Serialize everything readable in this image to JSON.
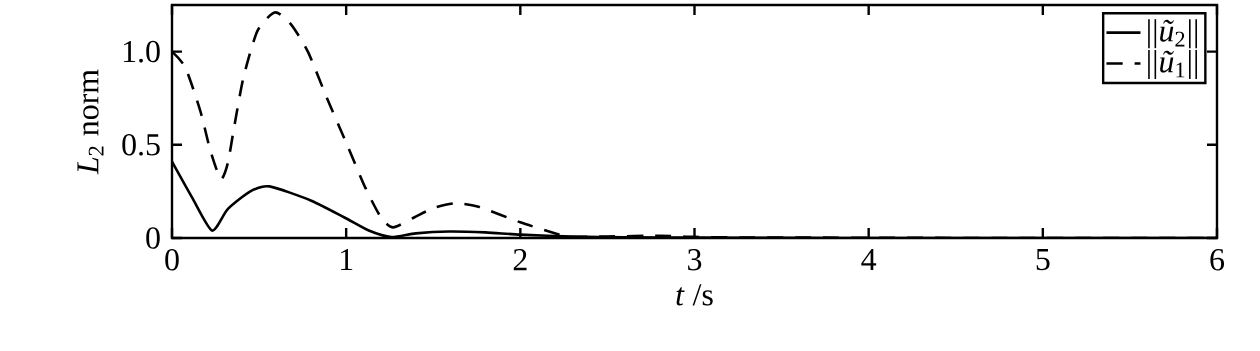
{
  "chart_data": {
    "type": "line",
    "xlabel": "*t* /s",
    "ylabel": "*L*$_{2}$ norm",
    "xlim": [
      0,
      6
    ],
    "ylim": [
      0,
      1.25
    ],
    "xticks": [
      0,
      1,
      2,
      3,
      4,
      5,
      6
    ],
    "yticks": [
      0,
      0.5,
      {
        "value": 1,
        "label": "1.0"
      }
    ],
    "grid": false,
    "legend": "top right",
    "marker": "none",
    "series": [
      {
        "name": "||*ũ*$_{2}$||",
        "color": "#000000",
        "line_style": "solid",
        "x": [
          0,
          0.115,
          0.23,
          0.32,
          0.45,
          0.56,
          0.8,
          0.99,
          1.13,
          1.26,
          1.4,
          1.59,
          1.8,
          2.0,
          2.3,
          2.6,
          3.0,
          3.5,
          4,
          5,
          6
        ],
        "values": [
          0.41,
          0.218,
          0.04,
          0.155,
          0.25,
          0.277,
          0.2,
          0.11,
          0.04,
          0.005,
          0.025,
          0.035,
          0.03,
          0.018,
          0.008,
          0.004,
          0.002,
          0.001,
          0,
          0,
          0
        ]
      },
      {
        "name": "||*ũ*$_{1}$||",
        "color": "#000000",
        "line_style": "dashed",
        "x": [
          0,
          0.077,
          0.163,
          0.22,
          0.28,
          0.32,
          0.356,
          0.41,
          0.49,
          0.59,
          0.68,
          0.78,
          0.89,
          1.01,
          1.11,
          1.2,
          1.27,
          1.39,
          1.5,
          1.625,
          1.76,
          2.0,
          2.24,
          2.3,
          2.5,
          2.8,
          3.0,
          3.3,
          3.6,
          4,
          5,
          6
        ],
        "values": [
          1.0,
          0.914,
          0.68,
          0.47,
          0.316,
          0.4,
          0.59,
          0.86,
          1.11,
          1.21,
          1.15,
          1.0,
          0.75,
          0.49,
          0.27,
          0.11,
          0.057,
          0.11,
          0.16,
          0.186,
          0.168,
          0.084,
          0.013,
          0.005,
          0.008,
          0.012,
          0.006,
          0.002,
          0.003,
          0.001,
          0,
          0
        ]
      }
    ]
  }
}
